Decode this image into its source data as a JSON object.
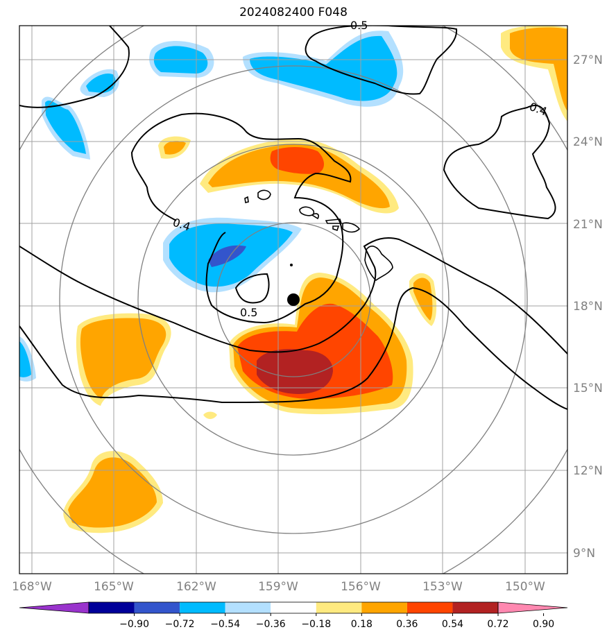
{
  "title": "2024082400 F048",
  "lat_ticks": [
    "27°N",
    "24°N",
    "21°N",
    "18°N",
    "15°N",
    "12°N",
    "9°N"
  ],
  "lon_ticks": [
    "168°W",
    "165°W",
    "162°W",
    "159°W",
    "156°W",
    "153°W",
    "150°W"
  ],
  "contour_labels": [
    "0.4",
    "0.4",
    "0.5",
    "0.5"
  ],
  "colorbar": {
    "labels": [
      "−0.90",
      "−0.72",
      "−0.54",
      "−0.36",
      "−0.18",
      "0.18",
      "0.36",
      "0.54",
      "0.72",
      "0.90"
    ],
    "colors": [
      "#9933cc",
      "#000099",
      "#3355cc",
      "#00bbff",
      "#b3e0ff",
      "#ffffff",
      "#ffea80",
      "#ffa500",
      "#ff4500",
      "#b22222",
      "#ff88b0"
    ]
  },
  "storm_center": {
    "lat": 18.3,
    "lon": -158.5
  },
  "colors": {
    "grid": "#a0a0a0",
    "range_rings": "#808080",
    "contour": "#000000"
  }
}
